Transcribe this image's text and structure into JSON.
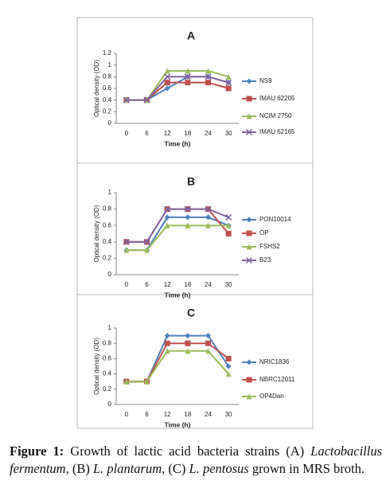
{
  "chart_data": [
    {
      "type": "line",
      "title": "A",
      "y_label": "Optical density (OD)",
      "x_label": "Time (h)",
      "categories": [
        "0",
        "6",
        "12",
        "18",
        "24",
        "30"
      ],
      "ylim": [
        0,
        1.2
      ],
      "yticks": [
        0,
        0.2,
        0.4,
        0.6,
        0.8,
        1,
        1.2
      ],
      "series": [
        {
          "name": "NS9",
          "color": "#4f81bd",
          "marker": "diamond",
          "values": [
            0.4,
            0.4,
            0.6,
            0.8,
            0.8,
            0.7
          ]
        },
        {
          "name": "IMAU 62205",
          "color": "#c0504d",
          "marker": "square",
          "values": [
            0.4,
            0.4,
            0.7,
            0.7,
            0.7,
            0.6
          ]
        },
        {
          "name": "NCIM 2750",
          "color": "#9bbb59",
          "marker": "triangle",
          "values": [
            0.4,
            0.4,
            0.9,
            0.9,
            0.9,
            0.8
          ]
        },
        {
          "name": "IMAU 62165",
          "color": "#8064a2",
          "marker": "x",
          "values": [
            0.4,
            0.4,
            0.8,
            0.8,
            0.8,
            0.7
          ]
        }
      ]
    },
    {
      "type": "line",
      "title": "B",
      "y_label": "Optical density (OD)",
      "x_label": "Time (h)",
      "categories": [
        "0",
        "6",
        "12",
        "18",
        "24",
        "30"
      ],
      "ylim": [
        0,
        1
      ],
      "yticks": [
        0,
        0.2,
        0.4,
        0.6,
        0.8,
        1
      ],
      "series": [
        {
          "name": "PON10014",
          "color": "#4f81bd",
          "marker": "diamond",
          "values": [
            0.3,
            0.3,
            0.7,
            0.7,
            0.7,
            0.6
          ]
        },
        {
          "name": "OP",
          "color": "#c0504d",
          "marker": "square",
          "values": [
            0.4,
            0.4,
            0.8,
            0.8,
            0.8,
            0.5
          ]
        },
        {
          "name": "FSHS2",
          "color": "#9bbb59",
          "marker": "triangle",
          "values": [
            0.3,
            0.3,
            0.6,
            0.6,
            0.6,
            0.6
          ]
        },
        {
          "name": "B23",
          "color": "#8064a2",
          "marker": "x",
          "values": [
            0.4,
            0.4,
            0.8,
            0.8,
            0.8,
            0.7
          ]
        }
      ]
    },
    {
      "type": "line",
      "title": "C",
      "y_label": "Optical density (OD)",
      "x_label": "Time (h)",
      "categories": [
        "0",
        "6",
        "12",
        "18",
        "24",
        "30"
      ],
      "ylim": [
        0,
        1
      ],
      "yticks": [
        0,
        0.2,
        0.4,
        0.6,
        0.8,
        1
      ],
      "series": [
        {
          "name": "NRIC1836",
          "color": "#4f81bd",
          "marker": "diamond",
          "values": [
            0.3,
            0.3,
            0.9,
            0.9,
            0.9,
            0.5
          ]
        },
        {
          "name": "NBRC12011",
          "color": "#c0504d",
          "marker": "square",
          "values": [
            0.3,
            0.3,
            0.8,
            0.8,
            0.8,
            0.6
          ]
        },
        {
          "name": "OP4Dan",
          "color": "#9bbb59",
          "marker": "triangle",
          "values": [
            0.3,
            0.3,
            0.7,
            0.7,
            0.7,
            0.4
          ]
        }
      ]
    }
  ],
  "caption": {
    "label": "Figure 1:",
    "parts": [
      {
        "text": " Growth of lactic acid bacteria strains (A) ",
        "italic": false
      },
      {
        "text": "Lactobacillus fermentum",
        "italic": true
      },
      {
        "text": ", (B) ",
        "italic": false
      },
      {
        "text": "L. plantarum",
        "italic": true
      },
      {
        "text": ", (C) ",
        "italic": false
      },
      {
        "text": "L. pentosus",
        "italic": true
      },
      {
        "text": " grown in MRS broth.",
        "italic": false
      }
    ]
  }
}
